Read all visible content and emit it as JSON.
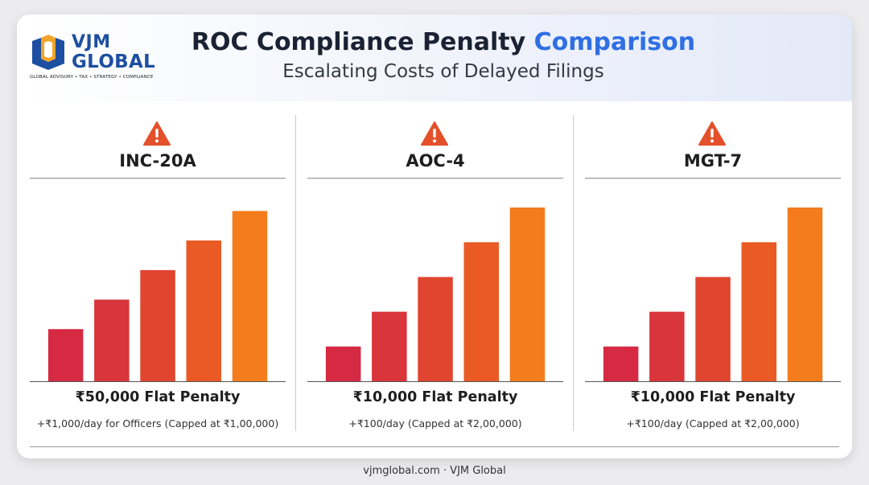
{
  "brand": {
    "name_top": "VJM",
    "name_bottom": "GLOBAL",
    "tagline": "GLOBAL ADVISORY • TAX • STRATEGY • COMPLIANCE",
    "primary_color": "#1d4fa0",
    "accent_color": "#f2a42a"
  },
  "header": {
    "title_main": "ROC Compliance Penalty",
    "title_accent": "Comparison",
    "subtitle": "Escalating Costs of Delayed Filings",
    "accent_color": "#2f6fe4"
  },
  "panels": [
    {
      "title": "INC-20A",
      "icon": "warning-icon",
      "penalty": "₹50,000 Flat Penalty",
      "note": "+₹1,000/day for Officers (Capped at ₹1,00,000)"
    },
    {
      "title": "AOC-4",
      "icon": "warning-icon",
      "penalty": "₹10,000 Flat Penalty",
      "note": "+₹100/day (Capped at ₹2,00,000)"
    },
    {
      "title": "MGT-7",
      "icon": "warning-icon",
      "penalty": "₹10,000 Flat Penalty",
      "note": "+₹100/day (Capped at ₹2,00,000)"
    }
  ],
  "chart_data": [
    {
      "type": "bar",
      "title": "INC-20A",
      "values": [
        0.3,
        0.47,
        0.64,
        0.81,
        0.98
      ],
      "ylim": [
        0,
        1
      ],
      "colors": [
        "#d52a42",
        "#d8363a",
        "#e04530",
        "#ea5a24",
        "#f47c1c"
      ],
      "grid": false
    },
    {
      "type": "bar",
      "title": "AOC-4",
      "values": [
        0.2,
        0.4,
        0.6,
        0.8,
        1.0
      ],
      "ylim": [
        0,
        1
      ],
      "colors": [
        "#d52a42",
        "#d8363a",
        "#e04530",
        "#ea5a24",
        "#f47c1c"
      ],
      "grid": false
    },
    {
      "type": "bar",
      "title": "MGT-7",
      "values": [
        0.2,
        0.4,
        0.6,
        0.8,
        1.0
      ],
      "ylim": [
        0,
        1
      ],
      "colors": [
        "#d52a42",
        "#d8363a",
        "#e04530",
        "#ea5a24",
        "#f47c1c"
      ],
      "grid": false
    }
  ],
  "colors": {
    "warning": "#e4502a",
    "background": "#ececef"
  },
  "footer": {
    "text": "vjmglobal.com · VJM Global"
  }
}
